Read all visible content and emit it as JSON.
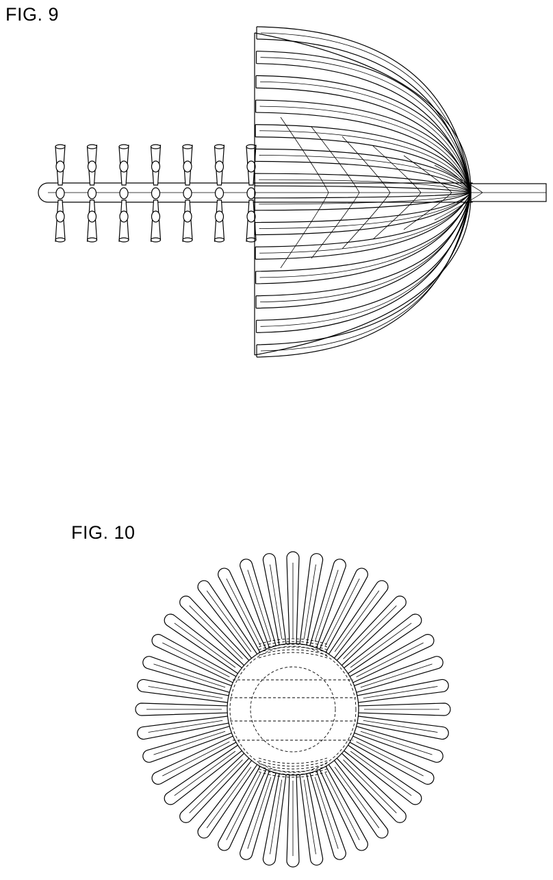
{
  "figures": [
    {
      "label": "FIG. 9"
    },
    {
      "label": "FIG. 10"
    }
  ],
  "fig9": {
    "left_bristle_rows": 7
  },
  "fig10": {
    "radial_bristles": 40
  }
}
